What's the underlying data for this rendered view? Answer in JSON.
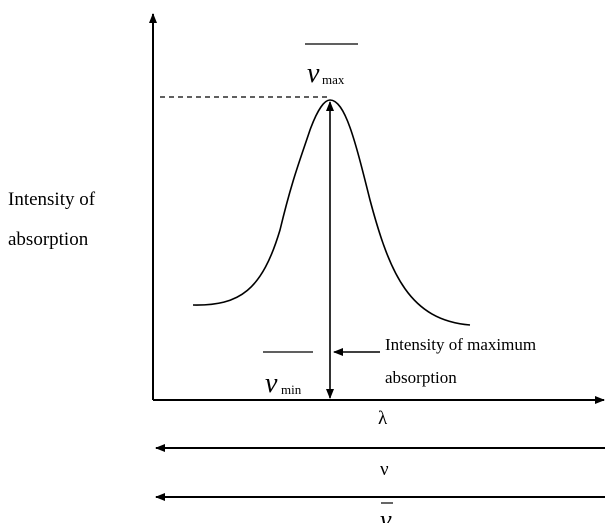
{
  "y_axis_label": [
    "Intensity of",
    "absorption"
  ],
  "peak_label": {
    "symbol": "ν",
    "subscript": "max"
  },
  "min_label": {
    "symbol": "ν",
    "subscript": "min"
  },
  "annotation": [
    "Intensity of maximum",
    "absorption"
  ],
  "x_axis_labels": [
    "λ",
    "ν",
    "ν"
  ]
}
